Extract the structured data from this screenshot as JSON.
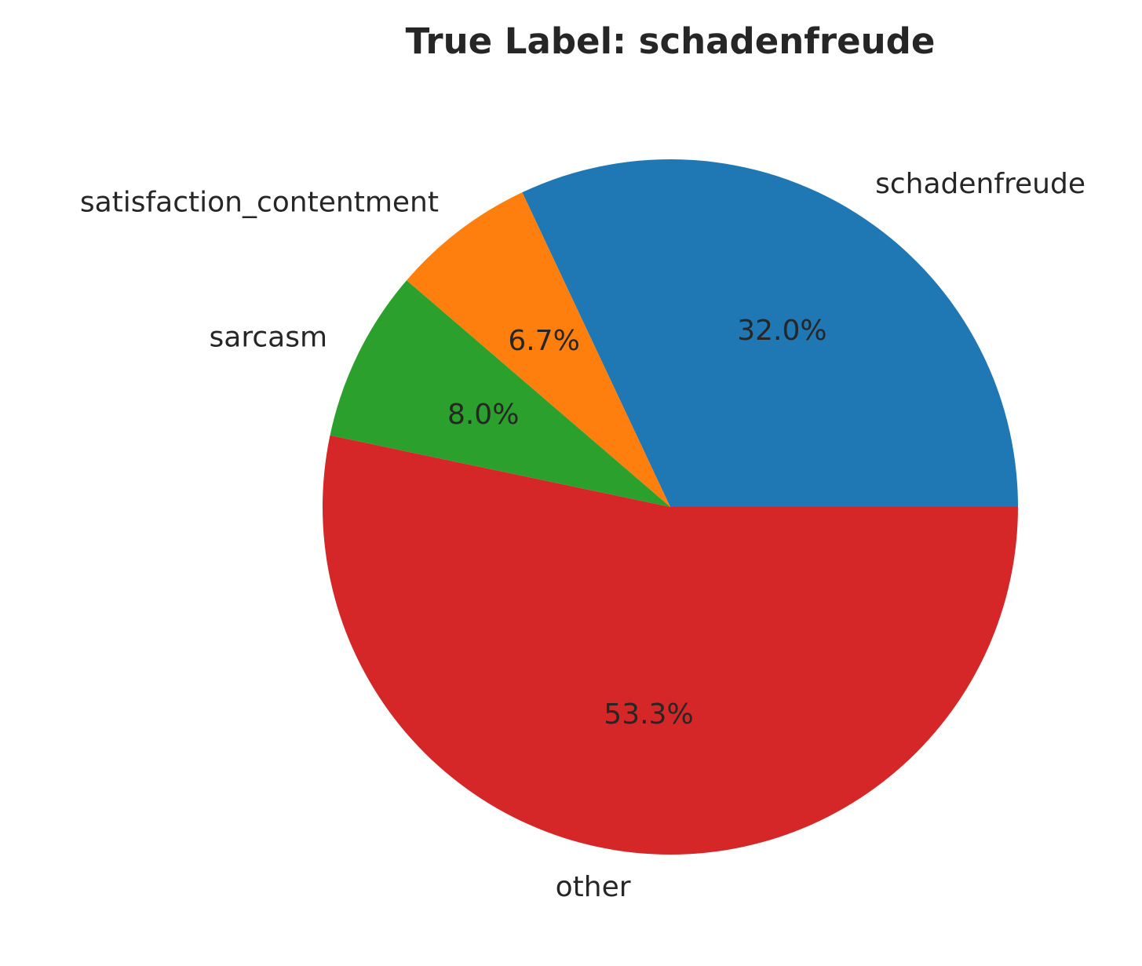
{
  "chart_data": {
    "type": "pie",
    "title": "True Label: schadenfreude",
    "categories": [
      "schadenfreude",
      "satisfaction_contentment",
      "sarcasm",
      "other"
    ],
    "values": [
      32.0,
      6.7,
      8.0,
      53.3
    ],
    "percent_labels": [
      "32.0%",
      "6.7%",
      "8.0%",
      "53.3%"
    ],
    "colors": [
      "#1f77b4",
      "#ff7f0e",
      "#2ca02c",
      "#d62728"
    ],
    "start_angle_deg": 0,
    "direction": "counterclockwise"
  }
}
